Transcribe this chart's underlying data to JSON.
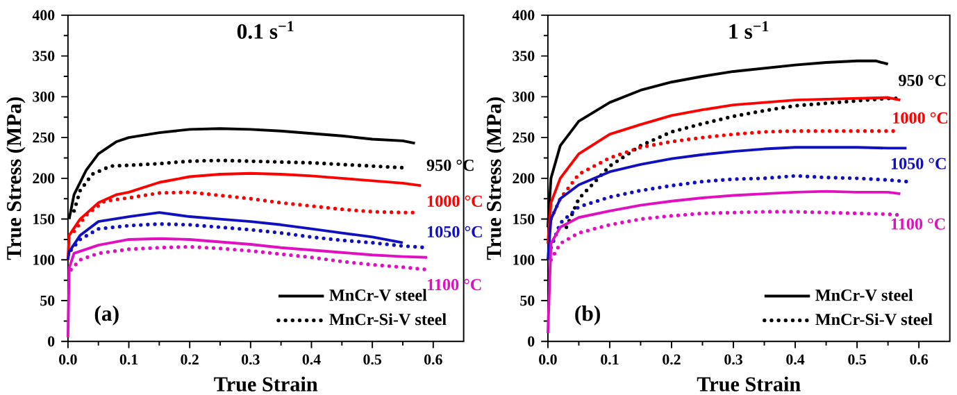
{
  "chart_data": [
    {
      "type": "line",
      "title": "0.1 s$^{−1}$",
      "xlabel": "True Strain",
      "ylabel": "True Stress (MPa)",
      "xlim": [
        0,
        0.65
      ],
      "ylim": [
        0,
        400
      ],
      "xticks": [
        {
          "value": 0,
          "label": "0.0"
        },
        0.1,
        0.2,
        0.3,
        0.4,
        0.5,
        0.6
      ],
      "yticks": [
        0,
        50,
        100,
        150,
        200,
        250,
        300,
        350,
        400
      ],
      "grid": false,
      "legend": "bottom right",
      "series": [
        {
          "name": "MnCr-V steel",
          "color": "#000000",
          "line_style": "solid",
          "x": [
            0.002,
            0.01,
            0.03,
            0.05,
            0.08,
            0.1,
            0.15,
            0.2,
            0.25,
            0.3,
            0.35,
            0.4,
            0.45,
            0.5,
            0.55,
            0.57
          ],
          "values": [
            150,
            180,
            210,
            230,
            245,
            250,
            256,
            260,
            261,
            260,
            258,
            255,
            252,
            248,
            246,
            243
          ]
        },
        {
          "name": "MnCr-Si-V steel",
          "color": "#000000",
          "line_style": "dotted",
          "x": [
            0.01,
            0.02,
            0.04,
            0.07,
            0.1,
            0.15,
            0.2,
            0.25,
            0.3,
            0.35,
            0.4,
            0.45,
            0.5,
            0.55
          ],
          "values": [
            160,
            185,
            205,
            215,
            216,
            218,
            221,
            222,
            221,
            220,
            219,
            217,
            215,
            213
          ]
        },
        {
          "color": "#ff0000",
          "line_style": "solid",
          "x": [
            0,
            0.002,
            0.02,
            0.05,
            0.08,
            0.1,
            0.15,
            0.2,
            0.25,
            0.3,
            0.35,
            0.4,
            0.45,
            0.5,
            0.55,
            0.58
          ],
          "values": [
            100,
            130,
            150,
            170,
            180,
            183,
            195,
            202,
            205,
            206,
            205,
            203,
            200,
            197,
            194,
            191
          ]
        },
        {
          "color": "#ff0000",
          "line_style": "dotted",
          "x": [
            0.01,
            0.03,
            0.06,
            0.1,
            0.15,
            0.2,
            0.25,
            0.3,
            0.35,
            0.4,
            0.45,
            0.5,
            0.55,
            0.57
          ],
          "values": [
            135,
            155,
            172,
            176,
            182,
            183,
            179,
            175,
            170,
            166,
            162,
            159,
            158,
            158
          ]
        },
        {
          "color": "#1010c0",
          "line_style": "solid",
          "x": [
            0,
            0.002,
            0.02,
            0.05,
            0.1,
            0.15,
            0.2,
            0.25,
            0.3,
            0.35,
            0.4,
            0.45,
            0.5,
            0.55
          ],
          "values": [
            100,
            110,
            130,
            147,
            153,
            158,
            153,
            150,
            147,
            143,
            138,
            133,
            128,
            121
          ]
        },
        {
          "color": "#1010c0",
          "line_style": "dotted",
          "x": [
            0.005,
            0.02,
            0.05,
            0.1,
            0.15,
            0.2,
            0.25,
            0.3,
            0.35,
            0.4,
            0.45,
            0.5,
            0.55,
            0.59
          ],
          "values": [
            112,
            125,
            138,
            142,
            144,
            143,
            140,
            137,
            133,
            128,
            124,
            121,
            117,
            115
          ]
        },
        {
          "color": "#e010c0",
          "line_style": "solid",
          "x": [
            0,
            0.002,
            0.01,
            0.05,
            0.1,
            0.15,
            0.2,
            0.25,
            0.3,
            0.35,
            0.4,
            0.45,
            0.5,
            0.55,
            0.59
          ],
          "values": [
            5,
            90,
            108,
            118,
            125,
            126,
            125,
            122,
            119,
            115,
            112,
            109,
            106,
            104,
            103
          ]
        },
        {
          "color": "#e010c0",
          "line_style": "dotted",
          "x": [
            0.005,
            0.02,
            0.05,
            0.1,
            0.15,
            0.2,
            0.25,
            0.3,
            0.35,
            0.4,
            0.45,
            0.5,
            0.55,
            0.59
          ],
          "values": [
            88,
            100,
            108,
            113,
            115,
            116,
            114,
            111,
            107,
            103,
            98,
            94,
            91,
            88
          ]
        }
      ],
      "annotations": [
        "950 °C",
        "1000 °C",
        "1050 °C",
        "1100 °C",
        "(a)"
      ]
    },
    {
      "type": "line",
      "title": "1 s$^{−1}$",
      "xlabel": "True Strain",
      "ylabel": "True Stress (MPa)",
      "xlim": [
        0,
        0.65
      ],
      "ylim": [
        0,
        400
      ],
      "xticks": [
        {
          "value": 0,
          "label": "0.0"
        },
        0.1,
        0.2,
        0.3,
        0.4,
        0.5,
        0.6
      ],
      "yticks": [
        0,
        50,
        100,
        150,
        200,
        250,
        300,
        350,
        400
      ],
      "grid": false,
      "legend": "bottom right",
      "series": [
        {
          "name": "MnCr-V steel",
          "color": "#000000",
          "line_style": "solid",
          "x": [
            0,
            0.005,
            0.02,
            0.05,
            0.1,
            0.15,
            0.2,
            0.25,
            0.3,
            0.35,
            0.4,
            0.45,
            0.5,
            0.53,
            0.55
          ],
          "values": [
            140,
            200,
            240,
            270,
            293,
            308,
            318,
            325,
            331,
            335,
            339,
            342,
            344,
            344,
            340
          ]
        },
        {
          "name": "MnCr-Si-V steel",
          "color": "#000000",
          "line_style": "dotted",
          "x": [
            0.03,
            0.05,
            0.1,
            0.15,
            0.2,
            0.25,
            0.3,
            0.35,
            0.4,
            0.45,
            0.5,
            0.55,
            0.57
          ],
          "values": [
            140,
            175,
            215,
            240,
            257,
            267,
            276,
            283,
            289,
            292,
            295,
            298,
            298
          ]
        },
        {
          "color": "#ff0000",
          "line_style": "solid",
          "x": [
            0,
            0.005,
            0.02,
            0.05,
            0.1,
            0.15,
            0.2,
            0.25,
            0.3,
            0.35,
            0.4,
            0.45,
            0.5,
            0.55,
            0.57
          ],
          "values": [
            120,
            170,
            200,
            230,
            254,
            266,
            277,
            284,
            290,
            293,
            296,
            297,
            298,
            299,
            296
          ]
        },
        {
          "color": "#ff0000",
          "line_style": "dotted",
          "x": [
            0.005,
            0.02,
            0.05,
            0.1,
            0.15,
            0.2,
            0.25,
            0.3,
            0.35,
            0.4,
            0.45,
            0.5,
            0.56
          ],
          "values": [
            150,
            175,
            205,
            225,
            238,
            245,
            250,
            254,
            257,
            258,
            258,
            258,
            258
          ]
        },
        {
          "color": "#1010c0",
          "line_style": "solid",
          "x": [
            0,
            0.005,
            0.02,
            0.05,
            0.1,
            0.15,
            0.2,
            0.25,
            0.3,
            0.35,
            0.4,
            0.45,
            0.5,
            0.55,
            0.58
          ],
          "values": [
            100,
            150,
            175,
            192,
            208,
            217,
            224,
            229,
            233,
            236,
            238,
            238,
            238,
            237,
            237
          ]
        },
        {
          "color": "#1010c0",
          "line_style": "dotted",
          "x": [
            0.005,
            0.02,
            0.05,
            0.1,
            0.15,
            0.2,
            0.25,
            0.3,
            0.35,
            0.4,
            0.45,
            0.5,
            0.55,
            0.58
          ],
          "values": [
            115,
            145,
            165,
            177,
            185,
            191,
            196,
            199,
            200,
            203,
            201,
            200,
            198,
            196
          ]
        },
        {
          "color": "#e010c0",
          "line_style": "solid",
          "x": [
            0,
            0.005,
            0.02,
            0.05,
            0.1,
            0.15,
            0.2,
            0.25,
            0.3,
            0.35,
            0.4,
            0.45,
            0.5,
            0.55,
            0.57
          ],
          "values": [
            10,
            120,
            140,
            152,
            160,
            167,
            172,
            176,
            179,
            181,
            183,
            184,
            183,
            183,
            181
          ]
        },
        {
          "color": "#e010c0",
          "line_style": "dotted",
          "x": [
            0.005,
            0.02,
            0.05,
            0.1,
            0.15,
            0.2,
            0.25,
            0.3,
            0.35,
            0.4,
            0.45,
            0.5,
            0.55,
            0.57
          ],
          "values": [
            100,
            120,
            133,
            143,
            150,
            154,
            157,
            158,
            159,
            159,
            158,
            157,
            156,
            155
          ]
        }
      ],
      "annotations": [
        "950 °C",
        "1000 °C",
        "1050 °C",
        "1100 °C",
        "(b)"
      ]
    }
  ]
}
